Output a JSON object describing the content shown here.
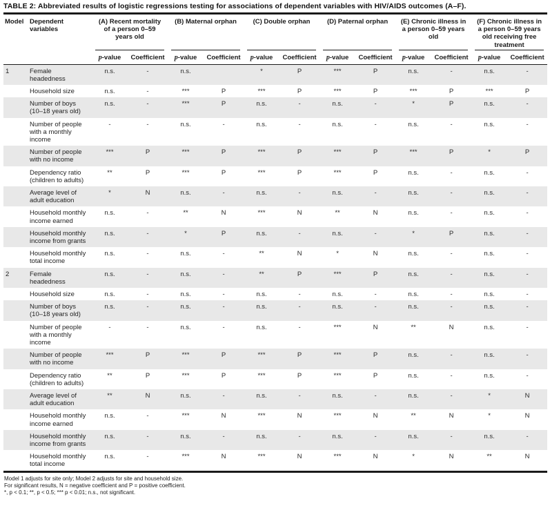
{
  "title": "TABLE 2: Abbreviated results of logistic regressions testing for associations of dependent variables with HIV/AIDS outcomes (A–F).",
  "header": {
    "model": "Model",
    "dependent": "Dependent variables",
    "groups": [
      "(A) Recent mortality of a person 0–59 years old",
      "(B) Maternal orphan",
      "(C) Double orphan",
      "(D) Paternal orphan",
      "(E) Chronic illness in a person 0–59 years old",
      "(F) Chronic illness in a person 0–59 years old receiving free treatment"
    ],
    "sub_p_italic": "p",
    "sub_p_rest": "-value",
    "sub_coefficient": "Coefficient"
  },
  "rows": [
    {
      "model": "1",
      "variable": "Female headedness",
      "cells": [
        "n.s.",
        "-",
        "n.s.",
        "",
        "*",
        "P",
        "***",
        "P",
        "n.s.",
        "-",
        "n.s.",
        "-"
      ]
    },
    {
      "model": "",
      "variable": "Household size",
      "cells": [
        "n.s.",
        "-",
        "***",
        "P",
        "***",
        "P",
        "***",
        "P",
        "***",
        "P",
        "***",
        "P"
      ]
    },
    {
      "model": "",
      "variable": "Number of boys (10–18 years old)",
      "cells": [
        "n.s.",
        "-",
        "***",
        "P",
        "n.s.",
        "-",
        "n.s.",
        "-",
        "*",
        "P",
        "n.s.",
        "-"
      ]
    },
    {
      "model": "",
      "variable": "Number of people with a monthly income",
      "cells": [
        "-",
        "-",
        "n.s.",
        "-",
        "n.s.",
        "-",
        "n.s.",
        "-",
        "n.s.",
        "-",
        "n.s.",
        "-"
      ]
    },
    {
      "model": "",
      "variable": "Number of people with no income",
      "cells": [
        "***",
        "P",
        "***",
        "P",
        "***",
        "P",
        "***",
        "P",
        "***",
        "P",
        "*",
        "P"
      ]
    },
    {
      "model": "",
      "variable": "Dependency ratio (children to adults)",
      "cells": [
        "**",
        "P",
        "***",
        "P",
        "***",
        "P",
        "***",
        "P",
        "n.s.",
        "-",
        "n.s.",
        "-"
      ]
    },
    {
      "model": "",
      "variable": "Average level of adult education",
      "cells": [
        "*",
        "N",
        "n.s.",
        "-",
        "n.s.",
        "-",
        "n.s.",
        "-",
        "n.s.",
        "-",
        "n.s.",
        "-"
      ]
    },
    {
      "model": "",
      "variable": "Household monthly income earned",
      "cells": [
        "n.s.",
        "-",
        "**",
        "N",
        "***",
        "N",
        "**",
        "N",
        "n.s.",
        "-",
        "n.s.",
        "-"
      ]
    },
    {
      "model": "",
      "variable": "Household monthly income from grants",
      "cells": [
        "n.s.",
        "-",
        "*",
        "P",
        "n.s.",
        "-",
        "n.s.",
        "-",
        "*",
        "P",
        "n.s.",
        "-"
      ]
    },
    {
      "model": "",
      "variable": "Household monthly total income",
      "cells": [
        "n.s.",
        "-",
        "n.s.",
        "-",
        "**",
        "N",
        "*",
        "N",
        "n.s.",
        "-",
        "n.s.",
        "-"
      ]
    },
    {
      "model": "2",
      "variable": "Female headedness",
      "cells": [
        "n.s.",
        "-",
        "n.s.",
        "-",
        "**",
        "P",
        "***",
        "P",
        "n.s.",
        "-",
        "n.s.",
        "-"
      ]
    },
    {
      "model": "",
      "variable": "Household size",
      "cells": [
        "n.s.",
        "-",
        "n.s.",
        "-",
        "n.s.",
        "-",
        "n.s.",
        "-",
        "n.s.",
        "-",
        "n.s.",
        "-"
      ]
    },
    {
      "model": "",
      "variable": "Number of boys (10–18 years old)",
      "cells": [
        "n.s.",
        "-",
        "n.s.",
        "-",
        "n.s.",
        "-",
        "n.s.",
        "-",
        "n.s.",
        "-",
        "n.s.",
        "-"
      ]
    },
    {
      "model": "",
      "variable": "Number of people with a monthly income",
      "cells": [
        "-",
        "-",
        "n.s.",
        "-",
        "n.s.",
        "-",
        "***",
        "N",
        "**",
        "N",
        "n.s.",
        "-"
      ]
    },
    {
      "model": "",
      "variable": "Number of people with no income",
      "cells": [
        "***",
        "P",
        "***",
        "P",
        "***",
        "P",
        "***",
        "P",
        "n.s.",
        "-",
        "n.s.",
        "-"
      ]
    },
    {
      "model": "",
      "variable": "Dependency ratio (children to adults)",
      "cells": [
        "**",
        "P",
        "***",
        "P",
        "***",
        "P",
        "***",
        "P",
        "n.s.",
        "-",
        "n.s.",
        "-"
      ]
    },
    {
      "model": "",
      "variable": "Average level of adult education",
      "cells": [
        "**",
        "N",
        "n.s.",
        "-",
        "n.s.",
        "-",
        "n.s.",
        "-",
        "n.s.",
        "-",
        "*",
        "N"
      ]
    },
    {
      "model": "",
      "variable": "Household monthly income earned",
      "cells": [
        "n.s.",
        "-",
        "***",
        "N",
        "***",
        "N",
        "***",
        "N",
        "**",
        "N",
        "*",
        "N"
      ]
    },
    {
      "model": "",
      "variable": "Household monthly income from grants",
      "cells": [
        "n.s.",
        "-",
        "n.s.",
        "-",
        "n.s.",
        "-",
        "n.s.",
        "-",
        "n.s.",
        "-",
        "n.s.",
        "-"
      ]
    },
    {
      "model": "",
      "variable": "Household monthly total income",
      "cells": [
        "n.s.",
        "-",
        "***",
        "N",
        "***",
        "N",
        "***",
        "N",
        "*",
        "N",
        "**",
        "N"
      ]
    }
  ],
  "notes": [
    "Model 1 adjusts for site only; Model 2 adjusts for site and household size.",
    "For significant results, N = negative coefficient and P = positive coefficient.",
    "*, p < 0.1; **, p < 0.5; *** p < 0.01; n.s., not significant."
  ]
}
